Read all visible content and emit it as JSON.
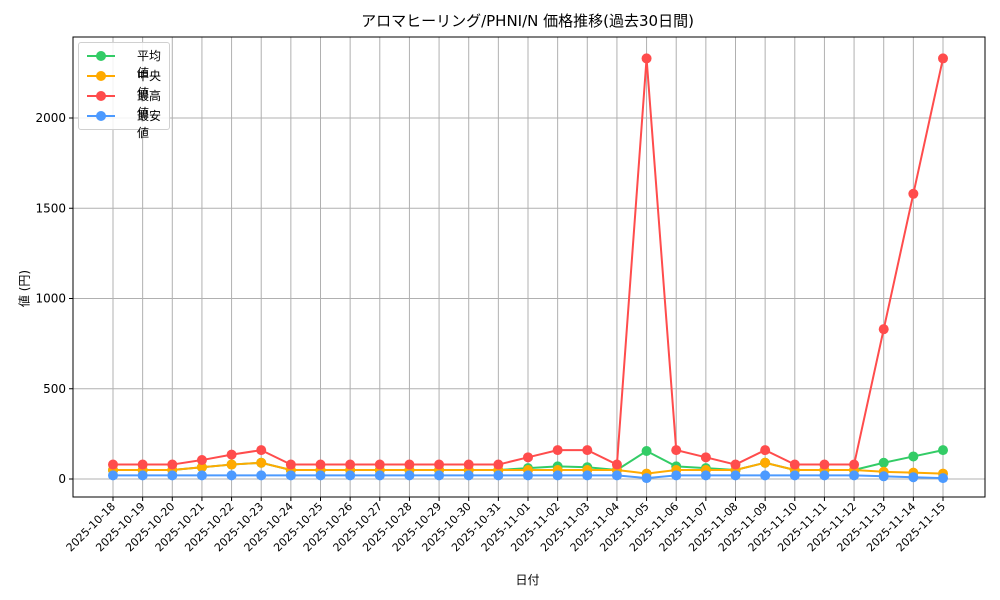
{
  "chart_data": {
    "type": "line",
    "title": "アロマヒーリング/PHNI/N 価格推移(過去30日間)",
    "xlabel": "日付",
    "ylabel": "値 (円)",
    "ylim": [
      -100,
      2440
    ],
    "yticks": [
      0,
      500,
      1000,
      1500,
      2000
    ],
    "grid": true,
    "legend_position": "upper left",
    "categories": [
      "2025-10-18",
      "2025-10-19",
      "2025-10-20",
      "2025-10-21",
      "2025-10-22",
      "2025-10-23",
      "2025-10-24",
      "2025-10-25",
      "2025-10-26",
      "2025-10-27",
      "2025-10-28",
      "2025-10-29",
      "2025-10-30",
      "2025-10-31",
      "2025-11-01",
      "2025-11-02",
      "2025-11-03",
      "2025-11-04",
      "2025-11-05",
      "2025-11-06",
      "2025-11-07",
      "2025-11-08",
      "2025-11-09",
      "2025-11-10",
      "2025-11-11",
      "2025-11-12",
      "2025-11-13",
      "2025-11-14",
      "2025-11-15"
    ],
    "series": [
      {
        "name": "平均値",
        "color": "#33cc66",
        "values": [
          50,
          50,
          50,
          65,
          80,
          90,
          50,
          50,
          50,
          50,
          50,
          50,
          50,
          50,
          60,
          70,
          65,
          50,
          155,
          70,
          60,
          50,
          90,
          50,
          50,
          50,
          90,
          125,
          160
        ]
      },
      {
        "name": "中央値",
        "color": "#ffaa00",
        "values": [
          50,
          50,
          50,
          65,
          80,
          90,
          50,
          50,
          50,
          50,
          50,
          50,
          50,
          50,
          50,
          50,
          50,
          50,
          30,
          50,
          50,
          50,
          90,
          50,
          50,
          50,
          40,
          35,
          30
        ]
      },
      {
        "name": "最高値",
        "color": "#ff4c4c",
        "values": [
          80,
          80,
          80,
          105,
          135,
          160,
          80,
          80,
          80,
          80,
          80,
          80,
          80,
          80,
          120,
          160,
          160,
          80,
          2330,
          160,
          120,
          80,
          160,
          80,
          80,
          80,
          830,
          1580,
          2330
        ]
      },
      {
        "name": "最安値",
        "color": "#4c9aff",
        "values": [
          20,
          20,
          20,
          20,
          20,
          20,
          20,
          20,
          20,
          20,
          20,
          20,
          20,
          20,
          20,
          20,
          20,
          20,
          5,
          20,
          20,
          20,
          20,
          20,
          20,
          20,
          15,
          10,
          5
        ]
      }
    ]
  },
  "legend": {
    "items": [
      {
        "label": "平均値",
        "color": "#33cc66"
      },
      {
        "label": "中央値",
        "color": "#ffaa00"
      },
      {
        "label": "最高値",
        "color": "#ff4c4c"
      },
      {
        "label": "最安値",
        "color": "#4c9aff"
      }
    ]
  }
}
